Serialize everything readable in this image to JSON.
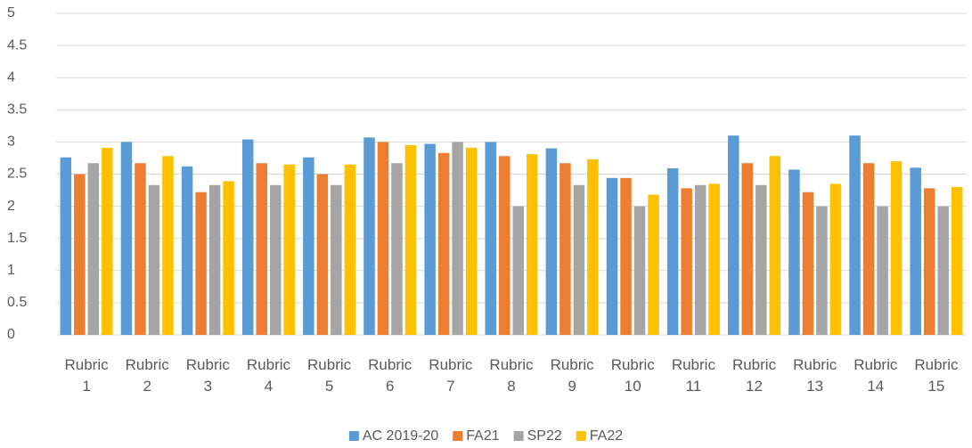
{
  "chart_data": {
    "type": "bar",
    "categories": [
      "Rubric 1",
      "Rubric 2",
      "Rubric 3",
      "Rubric 4",
      "Rubric 5",
      "Rubric 6",
      "Rubric 7",
      "Rubric 8",
      "Rubric 9",
      "Rubric 10",
      "Rubric 11",
      "Rubric 12",
      "Rubric 13",
      "Rubric 14",
      "Rubric 15"
    ],
    "series": [
      {
        "name": "AC 2019-20",
        "color": "#5b9bd5",
        "values": [
          2.76,
          3.0,
          2.62,
          3.04,
          2.76,
          3.07,
          2.97,
          3.0,
          2.9,
          2.44,
          2.59,
          3.1,
          2.57,
          3.1,
          2.6
        ]
      },
      {
        "name": "FA21",
        "color": "#ed7d31",
        "values": [
          2.5,
          2.67,
          2.22,
          2.67,
          2.5,
          3.0,
          2.83,
          2.78,
          2.67,
          2.44,
          2.28,
          2.67,
          2.22,
          2.67,
          2.28
        ]
      },
      {
        "name": "SP22",
        "color": "#a5a5a5",
        "values": [
          2.67,
          2.33,
          2.33,
          2.33,
          2.33,
          2.67,
          3.0,
          2.0,
          2.33,
          2.0,
          2.33,
          2.33,
          2.0,
          2.0,
          2.0
        ]
      },
      {
        "name": "FA22",
        "color": "#ffc000",
        "values": [
          2.91,
          2.78,
          2.39,
          2.65,
          2.65,
          2.95,
          2.91,
          2.81,
          2.73,
          2.18,
          2.35,
          2.78,
          2.35,
          2.7,
          2.3
        ]
      }
    ],
    "ylim": [
      0,
      5
    ],
    "yticks": [
      0,
      0.5,
      1,
      1.5,
      2,
      2.5,
      3,
      3.5,
      4,
      4.5,
      5
    ],
    "grid": true,
    "legend": "bottom"
  }
}
